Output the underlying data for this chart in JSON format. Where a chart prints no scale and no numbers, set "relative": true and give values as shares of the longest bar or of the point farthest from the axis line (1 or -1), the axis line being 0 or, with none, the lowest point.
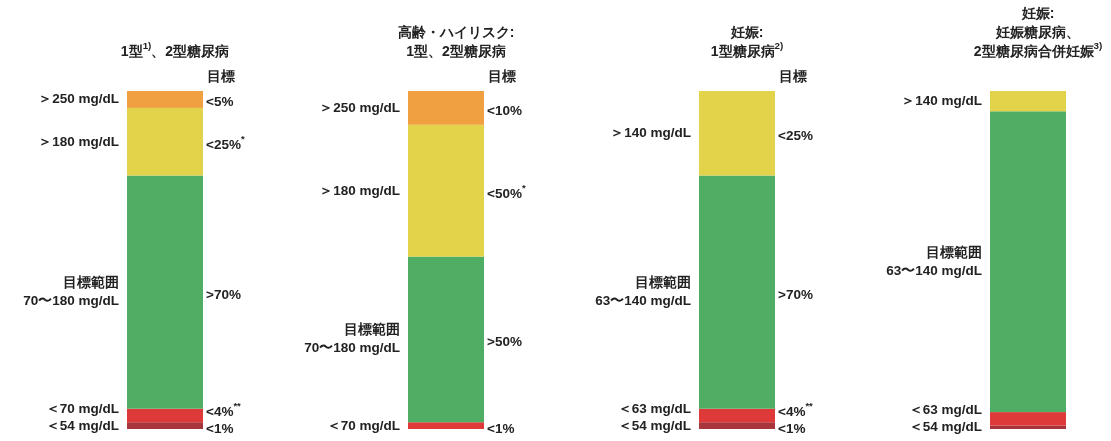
{
  "chart_data": [
    {
      "type": "bar",
      "stacked": true,
      "relative": true,
      "title": "1型$^{1)}$、2型糖尿病",
      "annotations": [
        "目標",
        "<1%",
        "<4%$^{**}$",
        ">70%",
        "<25%$^{*}$",
        "<5%"
      ],
      "categories": [
        null
      ],
      "series": [
        {
          "name": "＜54 mg/dL",
          "color": "#a8343c",
          "values": [
            0.02
          ]
        },
        {
          "name": "＜70 mg/dL",
          "color": "#de3a3a",
          "values": [
            0.04
          ]
        },
        {
          "name": "目標範囲 70〜180 mg/dL",
          "color": "#4fad64",
          "values": [
            0.69
          ]
        },
        {
          "name": "＞180 mg/dL",
          "color": "#e3d34a",
          "values": [
            0.2
          ]
        },
        {
          "name": "＞250 mg/dL",
          "color": "#f0a040",
          "values": [
            0.05
          ]
        }
      ]
    },
    {
      "type": "bar",
      "stacked": true,
      "relative": true,
      "title": "高齢・ハイリスク:\n1型、2型糖尿病",
      "annotations": [
        "目標",
        "<1%",
        ">50%",
        "<50%$^{*}$",
        "<10%"
      ],
      "categories": [
        null
      ],
      "series": [
        {
          "name": "＜70 mg/dL",
          "color": "#de3a3a",
          "values": [
            0.02
          ]
        },
        {
          "name": "目標範囲 70〜180 mg/dL",
          "color": "#4fad64",
          "values": [
            0.49
          ]
        },
        {
          "name": "＞180 mg/dL",
          "color": "#e3d34a",
          "values": [
            0.39
          ]
        },
        {
          "name": "＞250 mg/dL",
          "color": "#f0a040",
          "values": [
            0.1
          ]
        }
      ]
    },
    {
      "type": "bar",
      "stacked": true,
      "relative": true,
      "title": "妊娠:\n1型糖尿病$^{2)}$",
      "annotations": [
        "目標",
        "<1%",
        "<4%$^{**}$",
        ">70%",
        "<25%"
      ],
      "categories": [
        null
      ],
      "series": [
        {
          "name": "＜54 mg/dL",
          "color": "#a8343c",
          "values": [
            0.02
          ]
        },
        {
          "name": "＜63 mg/dL",
          "color": "#de3a3a",
          "values": [
            0.04
          ]
        },
        {
          "name": "目標範囲 63〜140 mg/dL",
          "color": "#4fad64",
          "values": [
            0.69
          ]
        },
        {
          "name": "＞140 mg/dL",
          "color": "#e3d34a",
          "values": [
            0.25
          ]
        }
      ]
    },
    {
      "type": "bar",
      "stacked": true,
      "relative": true,
      "title": "妊娠:\n妊娠糖尿病、\n2型糖尿病合併妊娠$^{3)}$",
      "categories": [
        null
      ],
      "series": [
        {
          "name": "＜54 mg/dL",
          "color": "#a8343c",
          "values": [
            0.01
          ]
        },
        {
          "name": "＜63 mg/dL",
          "color": "#de3a3a",
          "values": [
            0.04
          ]
        },
        {
          "name": "目標範囲 63〜140 mg/dL",
          "color": "#4fad64",
          "values": [
            0.89
          ]
        },
        {
          "name": "＞140 mg/dL",
          "color": "#e3d34a",
          "values": [
            0.06
          ]
        }
      ]
    }
  ]
}
